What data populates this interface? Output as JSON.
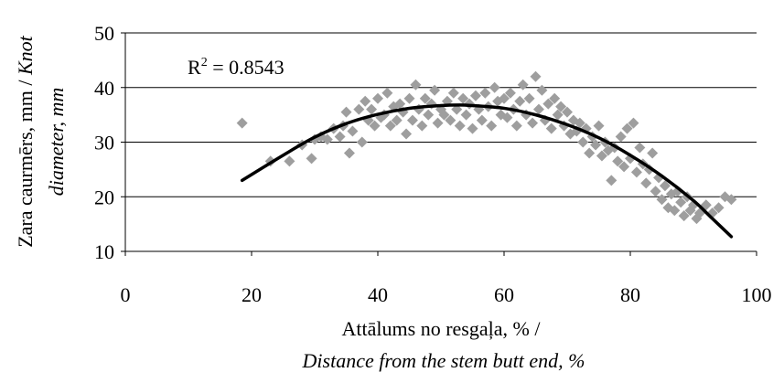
{
  "chart_data": {
    "type": "scatter",
    "xlabel_line1": "Attālums no resgaļa, % /",
    "xlabel_line2": "Distance from the stem butt end, %",
    "ylabel_line1": "Zara caurmērs, mm / ",
    "ylabel_line1_italic": "Knot",
    "ylabel_line2": "diameter, mm",
    "xlim": [
      0,
      100
    ],
    "ylim": [
      10,
      50
    ],
    "x_ticks": [
      "0",
      "20",
      "40",
      "60",
      "80",
      "100"
    ],
    "y_ticks": [
      "10",
      "20",
      "30",
      "40",
      "50"
    ],
    "grid": "horizontal",
    "marker_color": "#9e9e9e",
    "trend_color": "#000000",
    "annotation": {
      "prefix": "R",
      "sup": "2",
      "suffix": " = 0.8543"
    },
    "trendline": {
      "type": "polynomial-2",
      "points": [
        [
          18.5,
          23.0
        ],
        [
          25,
          27.6
        ],
        [
          30,
          30.9
        ],
        [
          35,
          33.4
        ],
        [
          40,
          35.1
        ],
        [
          45,
          36.2
        ],
        [
          50,
          36.7
        ],
        [
          53,
          36.8
        ],
        [
          55,
          36.7
        ],
        [
          60,
          36.2
        ],
        [
          65,
          35.0
        ],
        [
          70,
          33.2
        ],
        [
          75,
          30.8
        ],
        [
          80,
          27.6
        ],
        [
          85,
          23.8
        ],
        [
          90,
          19.3
        ],
        [
          93,
          16.0
        ],
        [
          96,
          12.7
        ]
      ]
    },
    "series": [
      {
        "points": [
          [
            18.5,
            33.5
          ],
          [
            23,
            26.5
          ],
          [
            26,
            26.5
          ],
          [
            28,
            29.5
          ],
          [
            29.5,
            27
          ],
          [
            30,
            30.5
          ],
          [
            31,
            31
          ],
          [
            32,
            30.5
          ],
          [
            33,
            32.5
          ],
          [
            34,
            31
          ],
          [
            34.5,
            33
          ],
          [
            35,
            35.5
          ],
          [
            35.5,
            28
          ],
          [
            36,
            32
          ],
          [
            37,
            36
          ],
          [
            37.5,
            30
          ],
          [
            38,
            37.5
          ],
          [
            38.5,
            34
          ],
          [
            39,
            36
          ],
          [
            39.5,
            33
          ],
          [
            40,
            38
          ],
          [
            40.5,
            34.5
          ],
          [
            41,
            35
          ],
          [
            41.5,
            39
          ],
          [
            42,
            33
          ],
          [
            42.5,
            36.5
          ],
          [
            43,
            34
          ],
          [
            43.5,
            37
          ],
          [
            44,
            35.5
          ],
          [
            44.5,
            31.5
          ],
          [
            45,
            38
          ],
          [
            45.5,
            34
          ],
          [
            46,
            40.5
          ],
          [
            46.5,
            36
          ],
          [
            47,
            33
          ],
          [
            47.5,
            38
          ],
          [
            48,
            35
          ],
          [
            48.5,
            37
          ],
          [
            49,
            39.5
          ],
          [
            49.5,
            33.5
          ],
          [
            50,
            36
          ],
          [
            50.5,
            35
          ],
          [
            51,
            37.5
          ],
          [
            51.5,
            34
          ],
          [
            52,
            39
          ],
          [
            52.5,
            36
          ],
          [
            53,
            33
          ],
          [
            53.5,
            38
          ],
          [
            54,
            35
          ],
          [
            54.5,
            37
          ],
          [
            55,
            32.5
          ],
          [
            55.5,
            38.5
          ],
          [
            56,
            36
          ],
          [
            56.5,
            34
          ],
          [
            57,
            39
          ],
          [
            57.5,
            36.5
          ],
          [
            58,
            33
          ],
          [
            58.5,
            40
          ],
          [
            59,
            37.5
          ],
          [
            59.5,
            35
          ],
          [
            60,
            38
          ],
          [
            60.5,
            34.5
          ],
          [
            61,
            39
          ],
          [
            61.5,
            36
          ],
          [
            62,
            33
          ],
          [
            62.5,
            37.5
          ],
          [
            63,
            40.5
          ],
          [
            63.5,
            35
          ],
          [
            64,
            38
          ],
          [
            64.5,
            33.5
          ],
          [
            65,
            42
          ],
          [
            65.5,
            36
          ],
          [
            66,
            39.5
          ],
          [
            66.5,
            34
          ],
          [
            67,
            37
          ],
          [
            67.5,
            32.5
          ],
          [
            68,
            38
          ],
          [
            68.5,
            35
          ],
          [
            69,
            36.5
          ],
          [
            69.5,
            33
          ],
          [
            70,
            35.5
          ],
          [
            70.5,
            31.5
          ],
          [
            71,
            34
          ],
          [
            71.5,
            32
          ],
          [
            72,
            33.5
          ],
          [
            72.5,
            30
          ],
          [
            73,
            32.5
          ],
          [
            73.5,
            28
          ],
          [
            74,
            31
          ],
          [
            74.5,
            29.5
          ],
          [
            75,
            33
          ],
          [
            75.5,
            27.5
          ],
          [
            76,
            30
          ],
          [
            76.5,
            28.5
          ],
          [
            77,
            23
          ],
          [
            77.5,
            29
          ],
          [
            78,
            26.5
          ],
          [
            78.5,
            31
          ],
          [
            79,
            25.5
          ],
          [
            79.5,
            32.5
          ],
          [
            80,
            27
          ],
          [
            80.5,
            33.5
          ],
          [
            81,
            24.5
          ],
          [
            81.5,
            29
          ],
          [
            82,
            26
          ],
          [
            82.5,
            22.5
          ],
          [
            83,
            25
          ],
          [
            83.5,
            28
          ],
          [
            84,
            21
          ],
          [
            84.5,
            23.5
          ],
          [
            85,
            19.5
          ],
          [
            85.5,
            22
          ],
          [
            86,
            18
          ],
          [
            86.5,
            20.5
          ],
          [
            87,
            17.5
          ],
          [
            87.5,
            21
          ],
          [
            88,
            19
          ],
          [
            88.5,
            16.5
          ],
          [
            89,
            20
          ],
          [
            89.5,
            17.5
          ],
          [
            90,
            18.5
          ],
          [
            90.5,
            16
          ],
          [
            91,
            17
          ],
          [
            92,
            18.5
          ],
          [
            93,
            17
          ],
          [
            94,
            18
          ],
          [
            95,
            20
          ],
          [
            96,
            19.5
          ]
        ]
      }
    ]
  }
}
